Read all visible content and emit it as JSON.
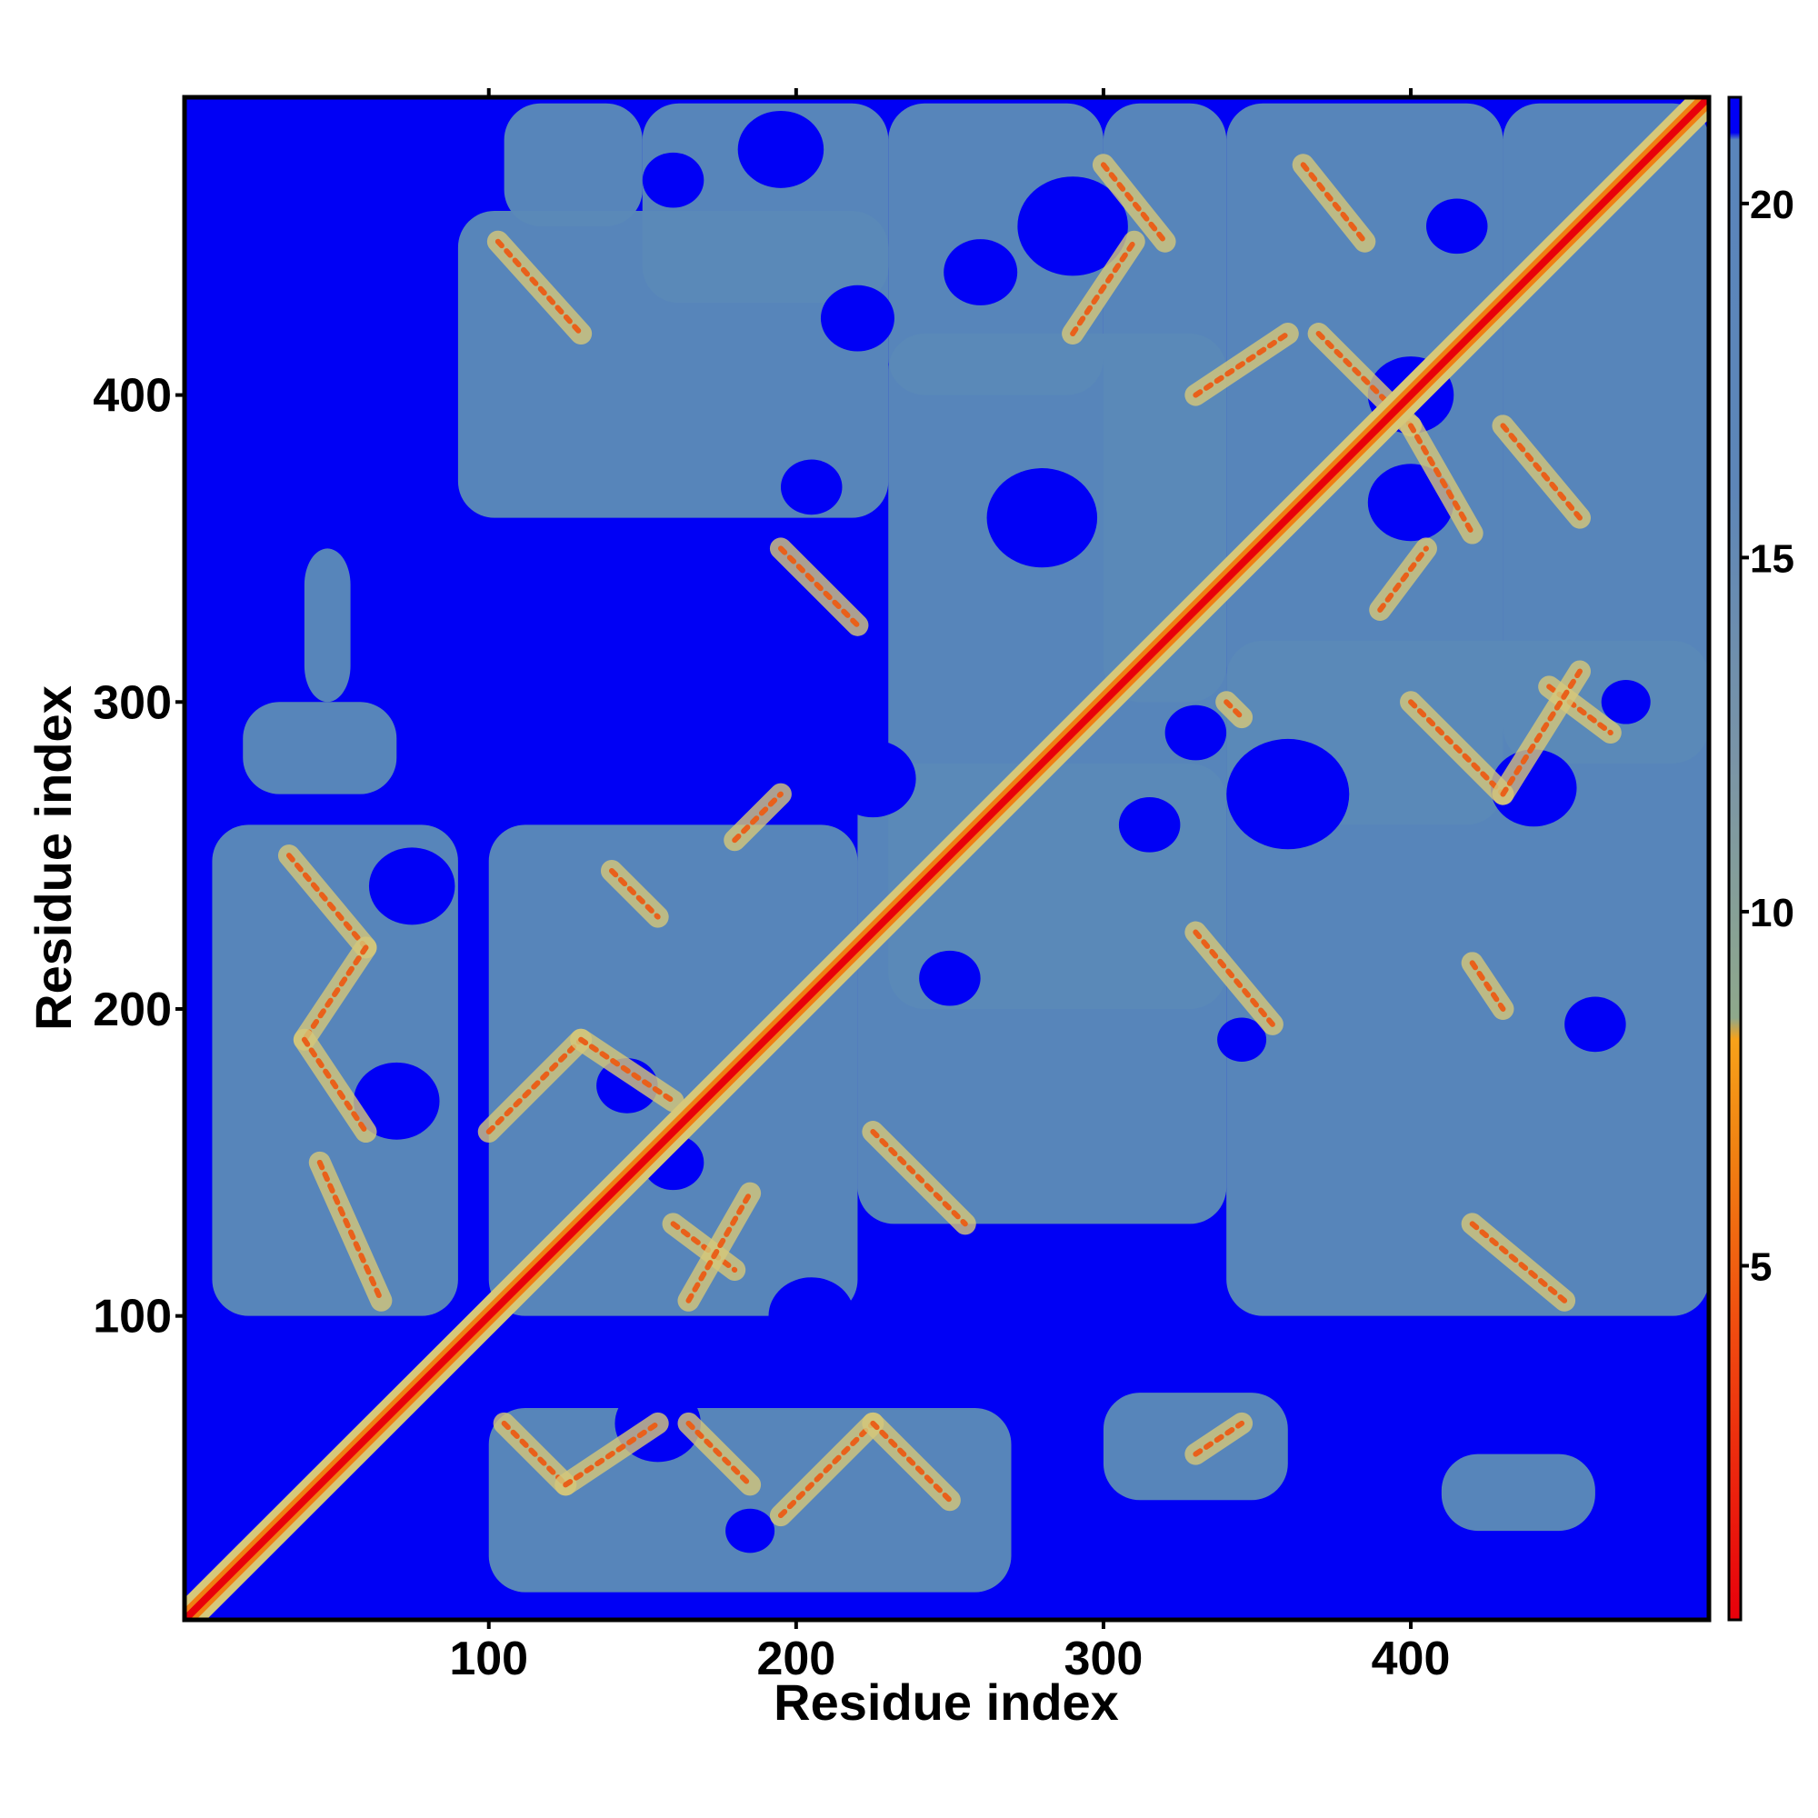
{
  "chart_data": {
    "type": "heatmap",
    "title": "",
    "xlabel": "Residue index",
    "ylabel": "Residue index",
    "xlim": [
      1,
      497
    ],
    "ylim": [
      1,
      497
    ],
    "x_ticks": [
      100,
      200,
      300,
      400
    ],
    "y_ticks": [
      100,
      200,
      300,
      400
    ],
    "x_tick_labels": [
      "100",
      "200",
      "300",
      "400"
    ],
    "y_tick_labels": [
      "100",
      "200",
      "300",
      "400"
    ],
    "colorbar": {
      "range": [
        0,
        21.5
      ],
      "ticks": [
        5,
        10,
        15,
        20
      ],
      "tick_labels": [
        "5",
        "10",
        "15",
        "20"
      ],
      "stops": [
        {
          "value": 0,
          "color": "#e8000b"
        },
        {
          "value": 4,
          "color": "#f04a10"
        },
        {
          "value": 6.5,
          "color": "#f07f12"
        },
        {
          "value": 8.2,
          "color": "#f7a21a"
        },
        {
          "value": 8.5,
          "color": "#8fa88c"
        },
        {
          "value": 12,
          "color": "#7b95a6"
        },
        {
          "value": 16,
          "color": "#5d86b8"
        },
        {
          "value": 20.9,
          "color": "#5a85bb"
        },
        {
          "value": 21,
          "color": "#0000f5"
        },
        {
          "value": 21.5,
          "color": "#0000f5"
        }
      ]
    },
    "background_color": "#0000f5",
    "contact_color": "#5a89b8",
    "diagonal_color": "#e8000b",
    "near_contact_color": "#d6c87a",
    "ridges": [
      {
        "from": [
          103,
          450
        ],
        "to": [
          130,
          420
        ]
      },
      {
        "from": [
          300,
          475
        ],
        "to": [
          320,
          450
        ]
      },
      {
        "from": [
          365,
          475
        ],
        "to": [
          385,
          450
        ]
      },
      {
        "from": [
          290,
          420
        ],
        "to": [
          310,
          450
        ]
      },
      {
        "from": [
          330,
          400
        ],
        "to": [
          360,
          420
        ]
      },
      {
        "from": [
          370,
          420
        ],
        "to": [
          400,
          390
        ]
      },
      {
        "from": [
          400,
          390
        ],
        "to": [
          420,
          355
        ]
      },
      {
        "from": [
          390,
          330
        ],
        "to": [
          405,
          350
        ]
      },
      {
        "from": [
          430,
          390
        ],
        "to": [
          455,
          360
        ]
      },
      {
        "from": [
          445,
          305
        ],
        "to": [
          465,
          290
        ]
      },
      {
        "from": [
          400,
          300
        ],
        "to": [
          430,
          270
        ]
      },
      {
        "from": [
          430,
          270
        ],
        "to": [
          455,
          310
        ]
      },
      {
        "from": [
          340,
          300
        ],
        "to": [
          345,
          295
        ]
      },
      {
        "from": [
          195,
          350
        ],
        "to": [
          220,
          325
        ]
      },
      {
        "from": [
          140,
          245
        ],
        "to": [
          155,
          230
        ]
      },
      {
        "from": [
          180,
          255
        ],
        "to": [
          195,
          270
        ]
      },
      {
        "from": [
          100,
          160
        ],
        "to": [
          130,
          190
        ]
      },
      {
        "from": [
          130,
          190
        ],
        "to": [
          160,
          170
        ]
      },
      {
        "from": [
          160,
          130
        ],
        "to": [
          180,
          115
        ]
      },
      {
        "from": [
          165,
          105
        ],
        "to": [
          185,
          140
        ]
      },
      {
        "from": [
          225,
          160
        ],
        "to": [
          255,
          130
        ]
      },
      {
        "from": [
          330,
          225
        ],
        "to": [
          355,
          195
        ]
      },
      {
        "from": [
          420,
          215
        ],
        "to": [
          430,
          200
        ]
      },
      {
        "from": [
          420,
          130
        ],
        "to": [
          450,
          105
        ]
      },
      {
        "from": [
          35,
          250
        ],
        "to": [
          60,
          220
        ]
      },
      {
        "from": [
          60,
          220
        ],
        "to": [
          40,
          190
        ]
      },
      {
        "from": [
          40,
          190
        ],
        "to": [
          60,
          160
        ]
      },
      {
        "from": [
          45,
          150
        ],
        "to": [
          65,
          105
        ]
      },
      {
        "from": [
          105,
          65
        ],
        "to": [
          125,
          45
        ]
      },
      {
        "from": [
          125,
          45
        ],
        "to": [
          155,
          65
        ]
      },
      {
        "from": [
          165,
          65
        ],
        "to": [
          185,
          45
        ]
      },
      {
        "from": [
          195,
          35
        ],
        "to": [
          225,
          65
        ]
      },
      {
        "from": [
          225,
          65
        ],
        "to": [
          250,
          40
        ]
      },
      {
        "from": [
          330,
          55
        ],
        "to": [
          345,
          65
        ]
      }
    ]
  }
}
